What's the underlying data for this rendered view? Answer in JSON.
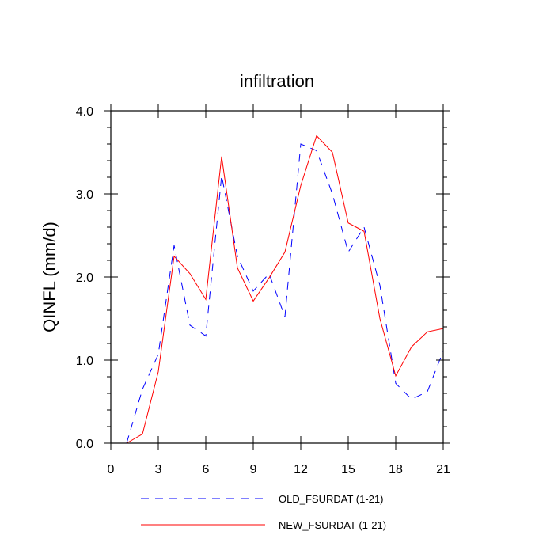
{
  "chart_data": {
    "type": "line",
    "title": "infiltration",
    "xlabel": "",
    "ylabel": "QINFL  (mm/d)",
    "xlim": [
      0,
      21
    ],
    "ylim": [
      0.0,
      4.0
    ],
    "x_ticks": [
      0,
      3,
      6,
      9,
      12,
      15,
      18,
      21
    ],
    "x_tick_labels": [
      "0",
      "3",
      "6",
      "9",
      "12",
      "15",
      "18",
      "21"
    ],
    "y_ticks": [
      0.0,
      1.0,
      2.0,
      3.0,
      4.0
    ],
    "y_tick_labels": [
      "0.0",
      "1.0",
      "2.0",
      "3.0",
      "4.0"
    ],
    "grid": false,
    "legend_position": "bottom",
    "x": [
      1,
      2,
      3,
      4,
      5,
      6,
      7,
      8,
      9,
      10,
      11,
      12,
      13,
      14,
      15,
      16,
      17,
      18,
      19,
      20,
      21
    ],
    "series": [
      {
        "name": "OLD_FSURDAT (1-21)",
        "color": "#0000ff",
        "dash": "dashed",
        "values": [
          0.0,
          0.65,
          1.07,
          2.38,
          1.42,
          1.29,
          3.22,
          2.25,
          1.83,
          2.04,
          1.52,
          3.6,
          3.52,
          3.0,
          2.3,
          2.6,
          1.9,
          0.72,
          0.53,
          0.62,
          1.11
        ]
      },
      {
        "name": "NEW_FSURDAT (1-21)",
        "color": "#ff0000",
        "dash": "solid",
        "values": [
          0.0,
          0.11,
          0.86,
          2.25,
          2.04,
          1.73,
          3.45,
          2.11,
          1.71,
          1.99,
          2.3,
          3.1,
          3.7,
          3.5,
          2.65,
          2.55,
          1.5,
          0.81,
          1.16,
          1.34,
          1.38
        ]
      }
    ]
  }
}
